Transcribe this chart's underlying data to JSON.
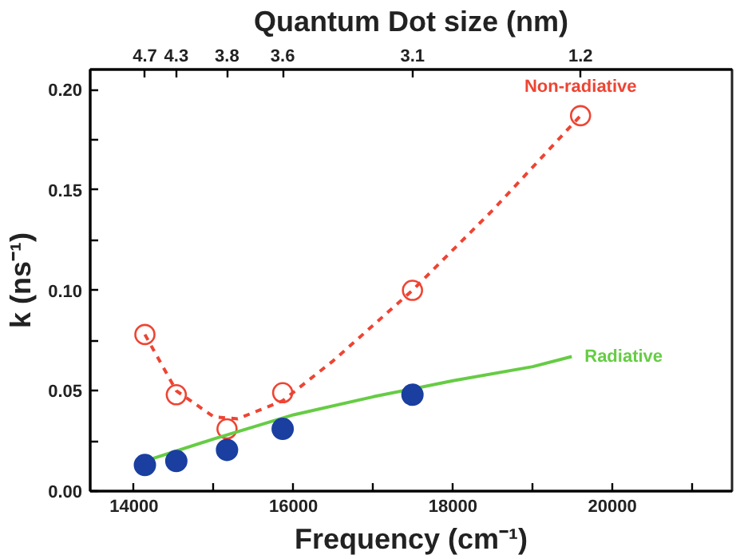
{
  "chart_data": {
    "type": "scatter",
    "xlabel": "Frequency (cm⁻¹)",
    "ylabel": "k (ns⁻¹)",
    "x2label": "Quantum Dot size (nm)",
    "xlim": [
      13450,
      21500
    ],
    "ylim": [
      0,
      0.21
    ],
    "xticks": [
      14000,
      {
        "value": 15000,
        "label": null
      },
      16000,
      {
        "value": 17000,
        "label": null
      },
      18000,
      {
        "value": 19000,
        "label": null
      },
      20000,
      {
        "value": 21000,
        "label": null
      }
    ],
    "yticks": [
      {
        "value": 0,
        "label": "0.00"
      },
      {
        "value": 0.025,
        "label": null
      },
      {
        "value": 0.05,
        "label": "0.05"
      },
      {
        "value": 0.075,
        "label": null
      },
      {
        "value": 0.1,
        "label": "0.10"
      },
      {
        "value": 0.125,
        "label": null
      },
      {
        "value": 0.15,
        "label": "0.15"
      },
      {
        "value": 0.175,
        "label": null
      },
      {
        "value": 0.2,
        "label": "0.20"
      }
    ],
    "annotations": [
      "4.7",
      "4.3",
      "3.8",
      "3.6",
      "3.1",
      "1.2"
    ],
    "grid": false,
    "series": [
      {
        "name": "Non-radiative",
        "marker": "circle",
        "color": "#ee4433",
        "x": [
          14136,
          14530,
          15166,
          15864,
          17492,
          19600
        ],
        "values": [
          0.078,
          0.048,
          0.031,
          0.049,
          0.1,
          0.187
        ]
      },
      {
        "type": "line",
        "line_style": "dashed",
        "color": "#ee4433",
        "x": [
          14136,
          14530,
          15000,
          15300,
          15864,
          16500,
          17492,
          18500,
          19600
        ],
        "values": [
          0.078,
          0.05,
          0.037,
          0.036,
          0.045,
          0.065,
          0.1,
          0.14,
          0.187
        ]
      },
      {
        "name": "Radiative",
        "type": "line",
        "line_style": "solid",
        "color": "#66cc44",
        "x": [
          14136,
          15000,
          16000,
          17000,
          18000,
          19000,
          19490
        ],
        "values": [
          0.015,
          0.026,
          0.038,
          0.047,
          0.055,
          0.062,
          0.067
        ]
      },
      {
        "marker": "circle",
        "color": "#1a3fa0",
        "x": [
          14136,
          14530,
          15166,
          15864,
          17492
        ],
        "values": [
          0.013,
          0.015,
          0.0205,
          0.031,
          0.048
        ]
      }
    ]
  }
}
